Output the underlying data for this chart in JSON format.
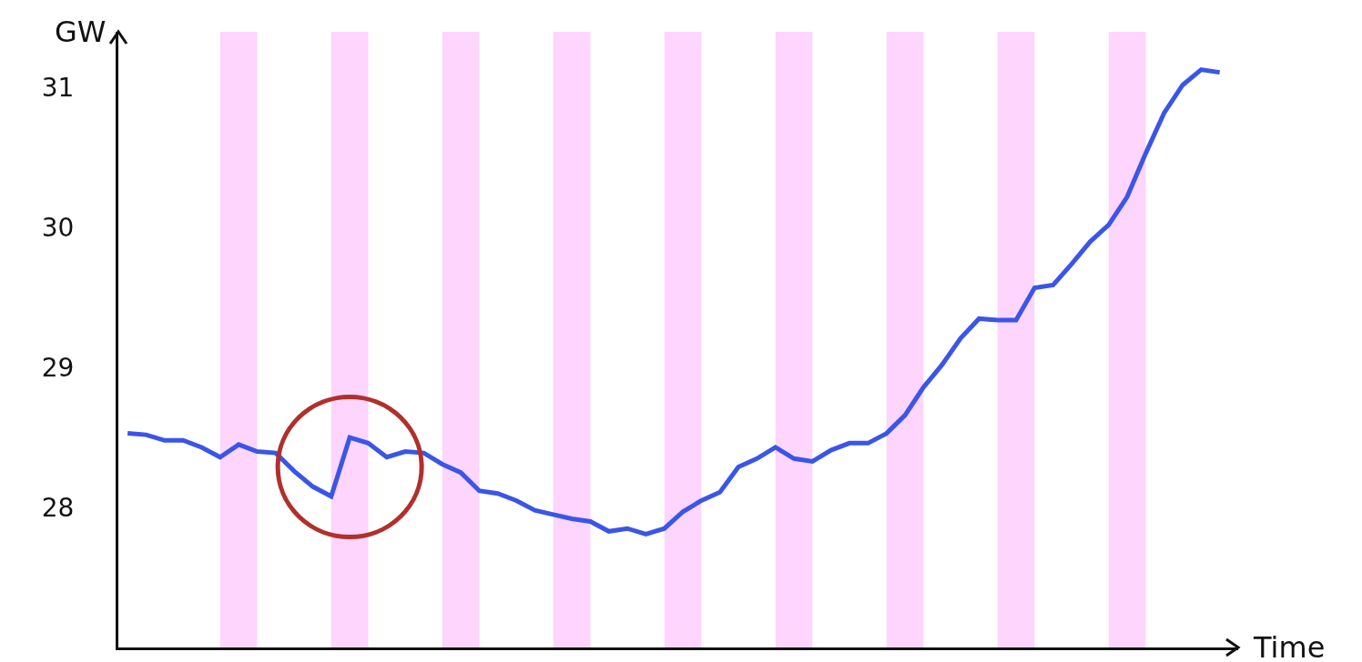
{
  "chart_data": {
    "type": "line",
    "xlabel": "Time",
    "ylabel": "GW",
    "categories": [
      null,
      null,
      null,
      null,
      null,
      null,
      null,
      null,
      null,
      null,
      null,
      null,
      null,
      null,
      null,
      null,
      null,
      null,
      null,
      null,
      null,
      null,
      null,
      null,
      null,
      null,
      null,
      null,
      null,
      null,
      null,
      null,
      null,
      null,
      null,
      null,
      null,
      null,
      null,
      null,
      null,
      null,
      null,
      null,
      null,
      null,
      null,
      null,
      null,
      null,
      null,
      null,
      null,
      null,
      null,
      null,
      null,
      null,
      null,
      null
    ],
    "series": [
      {
        "color": "#3a55e8",
        "values": [
          28.53,
          28.52,
          28.48,
          28.48,
          28.43,
          28.36,
          28.45,
          28.4,
          28.39,
          28.26,
          28.15,
          28.08,
          28.5,
          28.46,
          28.36,
          28.4,
          28.39,
          28.31,
          28.25,
          28.12,
          28.1,
          28.05,
          27.98,
          27.95,
          27.92,
          27.9,
          27.83,
          27.85,
          27.81,
          27.85,
          27.97,
          28.05,
          28.11,
          28.29,
          28.35,
          28.43,
          28.35,
          28.33,
          28.41,
          28.46,
          28.46,
          28.53,
          28.66,
          28.86,
          29.02,
          29.21,
          29.35,
          29.34,
          29.34,
          29.57,
          29.59,
          29.74,
          29.9,
          30.02,
          30.22,
          30.53,
          30.82,
          31.02,
          31.13,
          31.11
        ]
      }
    ],
    "ylim": [
      27,
      31.4
    ],
    "yticks": [
      28,
      29,
      30,
      31
    ],
    "grid": false,
    "marker": "none",
    "line_style": "solid",
    "tick_labels": "y"
  }
}
